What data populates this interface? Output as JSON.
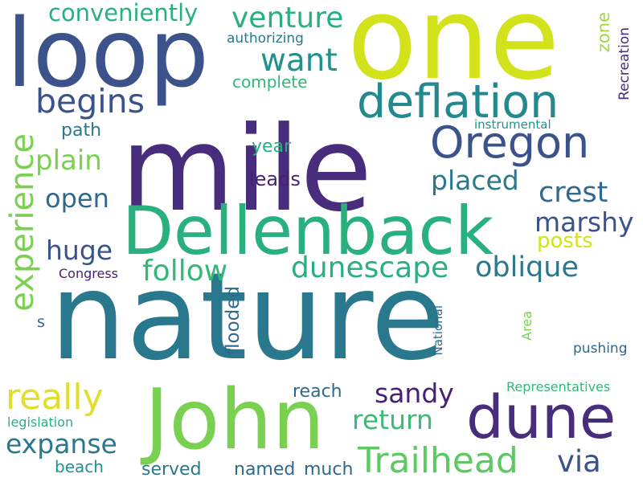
{
  "words": [
    {
      "text": "nature",
      "color": "#2a788e"
    },
    {
      "text": "mile",
      "color": "#472d7b"
    },
    {
      "text": "one",
      "color": "#d2e21b"
    },
    {
      "text": "loop",
      "color": "#3b528b"
    },
    {
      "text": "Dellenback",
      "color": "#2ab07f"
    },
    {
      "text": "John",
      "color": "#7ad151"
    },
    {
      "text": "dune",
      "color": "#472d7b"
    },
    {
      "text": "deflation",
      "color": "#23898e"
    },
    {
      "text": "Oregon",
      "color": "#3b528b"
    },
    {
      "text": "Trailhead",
      "color": "#5ec962"
    },
    {
      "text": "begins",
      "color": "#3b528b"
    },
    {
      "text": "want",
      "color": "#21918c"
    },
    {
      "text": "venture",
      "color": "#2ab07f"
    },
    {
      "text": "conveniently",
      "color": "#2ab07f"
    },
    {
      "text": "experience",
      "color": "#7ad151"
    },
    {
      "text": "really",
      "color": "#e0e02a"
    },
    {
      "text": "follow",
      "color": "#35b779"
    },
    {
      "text": "dunescape",
      "color": "#2ab07f"
    },
    {
      "text": "oblique",
      "color": "#2a788e"
    },
    {
      "text": "crest",
      "color": "#31688e"
    },
    {
      "text": "marshy",
      "color": "#3b528b"
    },
    {
      "text": "placed",
      "color": "#2a788e"
    },
    {
      "text": "plain",
      "color": "#7ad151"
    },
    {
      "text": "open",
      "color": "#31688e"
    },
    {
      "text": "huge",
      "color": "#3b528b"
    },
    {
      "text": "expanse",
      "color": "#2a788e"
    },
    {
      "text": "sandy",
      "color": "#482173"
    },
    {
      "text": "return",
      "color": "#3bbb75"
    },
    {
      "text": "via",
      "color": "#3b528b"
    },
    {
      "text": "posts",
      "color": "#d2e21b"
    },
    {
      "text": "year",
      "color": "#2ab07f"
    },
    {
      "text": "leads",
      "color": "#482173"
    },
    {
      "text": "path",
      "color": "#2a788e"
    },
    {
      "text": "complete",
      "color": "#35b779"
    },
    {
      "text": "authorizing",
      "color": "#2a788e"
    },
    {
      "text": "zone",
      "color": "#a0da39"
    },
    {
      "text": "Recreation",
      "color": "#472d7b"
    },
    {
      "text": "instrumental",
      "color": "#21918c"
    },
    {
      "text": "flooded",
      "color": "#31688e"
    },
    {
      "text": "reach",
      "color": "#31688e"
    },
    {
      "text": "Congress",
      "color": "#482173"
    },
    {
      "text": "s",
      "color": "#31688e"
    },
    {
      "text": "National",
      "color": "#31688e"
    },
    {
      "text": "Area",
      "color": "#7ad151"
    },
    {
      "text": "pushing",
      "color": "#31688e"
    },
    {
      "text": "Representatives",
      "color": "#35b779"
    },
    {
      "text": "legislation",
      "color": "#2ab07f"
    },
    {
      "text": "much",
      "color": "#31688e"
    },
    {
      "text": "named",
      "color": "#31688e"
    },
    {
      "text": "served",
      "color": "#2a788e"
    },
    {
      "text": "beach",
      "color": "#21918c"
    }
  ]
}
